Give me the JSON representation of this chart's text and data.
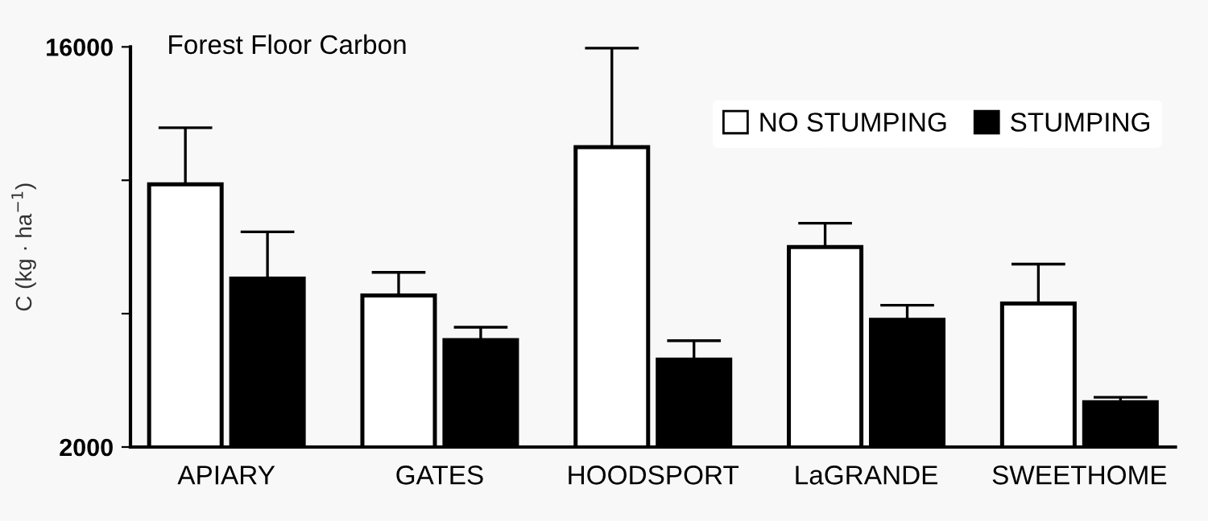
{
  "chart_data": {
    "type": "bar",
    "title": "Forest Floor Carbon",
    "ylabel": "C (kg · ha$^{−1}$)",
    "categories": [
      "APIARY",
      "GATES",
      "HOODSPORT",
      "LaGRANDE",
      "SWEETHOME"
    ],
    "series": [
      {
        "name": "NO STUMPING",
        "color": "#ffffff",
        "values": [
          11190,
          7300,
          12490,
          9000,
          7020
        ],
        "errors": [
          [
            11190,
            13170
          ],
          [
            7300,
            8110
          ],
          [
            12490,
            15960
          ],
          [
            9000,
            9830
          ],
          [
            7020,
            8400
          ]
        ]
      },
      {
        "name": "STUMPING",
        "color": "#000000",
        "values": [
          7890,
          5740,
          5060,
          6450,
          3570
        ],
        "errors": [
          [
            7890,
            9530
          ],
          [
            5740,
            6190
          ],
          [
            5060,
            5720
          ],
          [
            6450,
            6960
          ],
          [
            3570,
            3740
          ]
        ]
      }
    ],
    "ylim": [
      2000,
      16000
    ],
    "yticks": [
      2000,
      {
        "value": 6667,
        "label": null
      },
      {
        "value": 11333,
        "label": null
      },
      16000
    ],
    "legend": "top right",
    "grid": false
  }
}
